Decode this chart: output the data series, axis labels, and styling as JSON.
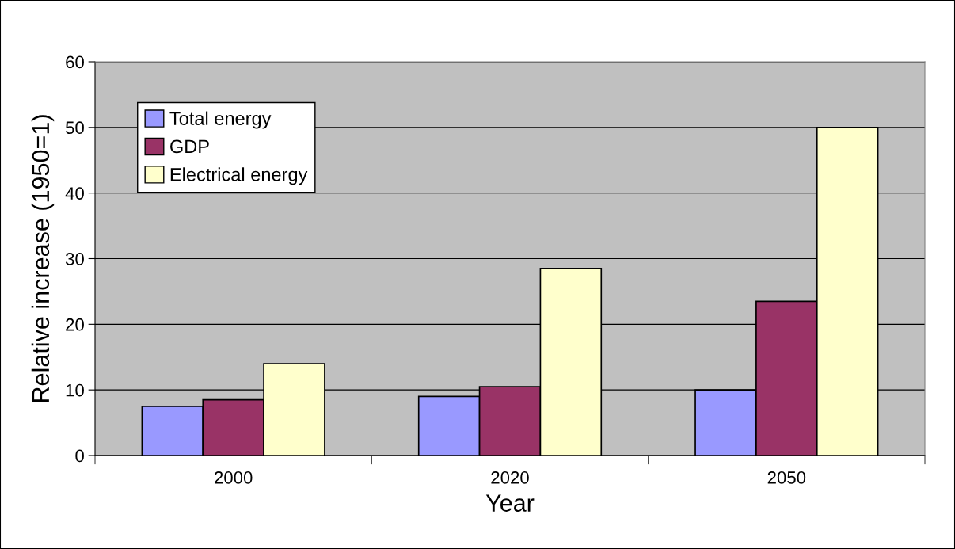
{
  "chart_data": {
    "type": "bar",
    "xlabel": "Year",
    "ylabel": "Relative increase (1950=1)",
    "categories": [
      "2000",
      "2020",
      "2050"
    ],
    "series": [
      {
        "name": "Total energy",
        "color": "#9999ff",
        "values": [
          7.5,
          9,
          10
        ]
      },
      {
        "name": "GDP",
        "color": "#993366",
        "values": [
          8.5,
          10.5,
          23.5
        ]
      },
      {
        "name": "Electrical energy",
        "color": "#ffffcc",
        "values": [
          14,
          28.5,
          50
        ]
      }
    ],
    "ylim": [
      0,
      60
    ],
    "yticks": [
      0,
      10,
      20,
      30,
      40,
      50,
      60
    ],
    "grid": "y",
    "legend": "top left"
  }
}
